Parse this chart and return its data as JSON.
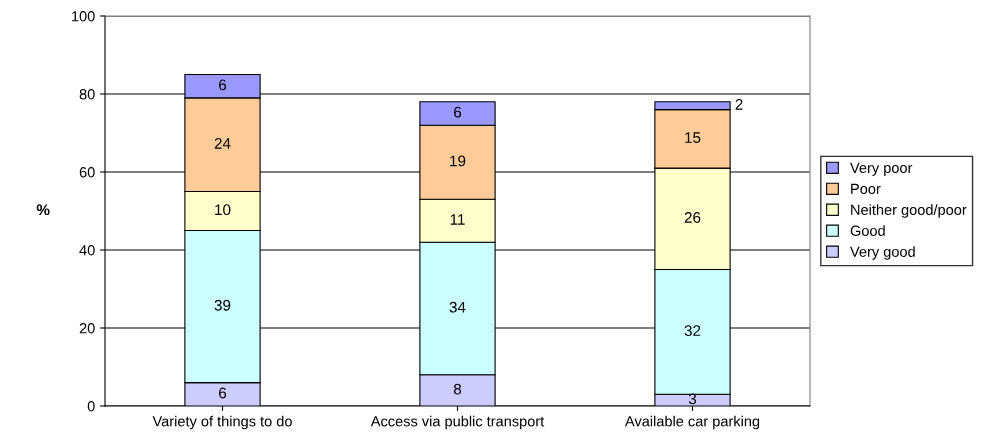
{
  "chart_data": {
    "type": "bar",
    "stacked": true,
    "ylabel": "%",
    "categories": [
      "Variety of things to do",
      "Access via public transport",
      "Available car parking"
    ],
    "series": [
      {
        "name": "Very good",
        "color": "#ccccff",
        "values": [
          6,
          8,
          3
        ]
      },
      {
        "name": "Good",
        "color": "#ccffff",
        "values": [
          39,
          34,
          32
        ]
      },
      {
        "name": "Neither good/poor",
        "color": "#ffffcc",
        "values": [
          10,
          11,
          26
        ]
      },
      {
        "name": "Poor",
        "color": "#ffcc99",
        "values": [
          24,
          19,
          15
        ]
      },
      {
        "name": "Very poor",
        "color": "#9999ff",
        "values": [
          6,
          6,
          2
        ]
      }
    ],
    "ylim": [
      0,
      100
    ],
    "yticks": [
      0,
      20,
      40,
      60,
      80,
      100
    ],
    "grid": "y",
    "legend": "right",
    "data_labels": true
  }
}
